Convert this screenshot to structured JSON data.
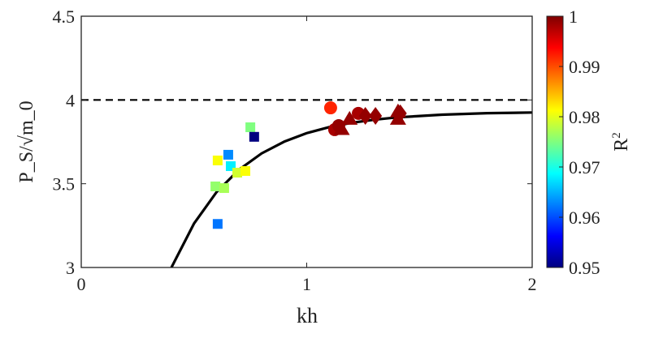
{
  "chart_data": {
    "type": "scatter",
    "xlabel": "kh",
    "ylabel": "P_S/√m_0",
    "xlim": [
      0,
      2
    ],
    "ylim": [
      3,
      4.5
    ],
    "xticks": [
      "0",
      "1",
      "2"
    ],
    "yticks": [
      "3",
      "3.5",
      "4",
      "4.5"
    ],
    "grid": false,
    "reference_line": {
      "y": 4,
      "style": "dashed"
    },
    "fit_curve": {
      "x": [
        0.4,
        0.5,
        0.6,
        0.7,
        0.8,
        0.9,
        1.0,
        1.1,
        1.2,
        1.3,
        1.4,
        1.6,
        1.8,
        2.0
      ],
      "y": [
        3.0,
        3.262,
        3.45,
        3.584,
        3.681,
        3.751,
        3.802,
        3.838,
        3.864,
        3.882,
        3.896,
        3.912,
        3.921,
        3.925
      ]
    },
    "colorbar": {
      "label": "R²",
      "label_main": "R",
      "label_sup": "2",
      "range": [
        0.95,
        1
      ],
      "ticks": [
        "0.95",
        "0.96",
        "0.97",
        "0.98",
        "0.99",
        "1"
      ],
      "colormap": "jet"
    },
    "points": [
      {
        "marker": "square",
        "x": 0.75,
        "y": 3.837,
        "r2": 0.975
      },
      {
        "marker": "square",
        "x": 0.767,
        "y": 3.78,
        "r2": 0.95
      },
      {
        "marker": "square",
        "x": 0.652,
        "y": 3.673,
        "r2": 0.963
      },
      {
        "marker": "square",
        "x": 0.605,
        "y": 3.639,
        "r2": 0.981
      },
      {
        "marker": "square",
        "x": 0.663,
        "y": 3.605,
        "r2": 0.968
      },
      {
        "marker": "square",
        "x": 0.692,
        "y": 3.566,
        "r2": 0.979
      },
      {
        "marker": "square",
        "x": 0.728,
        "y": 3.576,
        "r2": 0.981
      },
      {
        "marker": "square",
        "x": 0.595,
        "y": 3.484,
        "r2": 0.976
      },
      {
        "marker": "square",
        "x": 0.634,
        "y": 3.474,
        "r2": 0.977
      },
      {
        "marker": "square",
        "x": 0.605,
        "y": 3.26,
        "r2": 0.962
      },
      {
        "marker": "circle",
        "x": 1.106,
        "y": 3.953,
        "r2": 0.992
      },
      {
        "marker": "circle",
        "x": 1.124,
        "y": 3.823,
        "r2": 0.998
      },
      {
        "marker": "circle",
        "x": 1.142,
        "y": 3.847,
        "r2": 0.999
      },
      {
        "marker": "triangle",
        "x": 1.155,
        "y": 3.825,
        "r2": 0.999
      },
      {
        "marker": "triangle",
        "x": 1.19,
        "y": 3.886,
        "r2": 0.999
      },
      {
        "marker": "circle",
        "x": 1.229,
        "y": 3.92,
        "r2": 0.998
      },
      {
        "marker": "diamond",
        "x": 1.26,
        "y": 3.905,
        "r2": 0.999
      },
      {
        "marker": "diamond",
        "x": 1.305,
        "y": 3.905,
        "r2": 0.999
      },
      {
        "marker": "triangle",
        "x": 1.405,
        "y": 3.93,
        "r2": 0.999
      },
      {
        "marker": "diamond",
        "x": 1.415,
        "y": 3.92,
        "r2": 0.999
      },
      {
        "marker": "triangle",
        "x": 1.405,
        "y": 3.886,
        "r2": 0.999
      }
    ]
  }
}
